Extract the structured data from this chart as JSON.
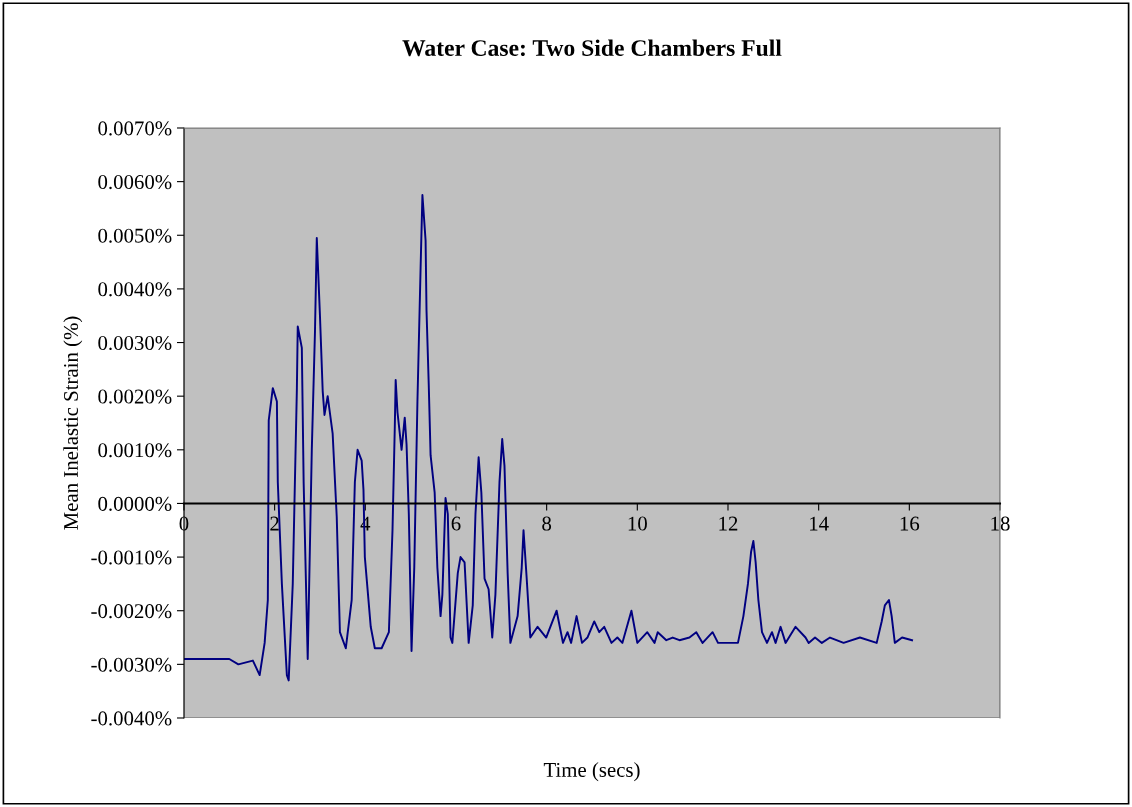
{
  "chart_data": {
    "type": "line",
    "title": "Water Case: Two Side Chambers Full",
    "xlabel": "Time (secs)",
    "ylabel": "Mean Inelastic Strain (%)",
    "x": [
      0,
      1.0,
      1.2,
      1.52,
      1.67,
      1.78,
      1.85,
      1.87,
      1.96,
      2.05,
      2.07,
      2.16,
      2.27,
      2.31,
      2.4,
      2.49,
      2.51,
      2.6,
      2.64,
      2.73,
      2.82,
      2.89,
      2.93,
      3.0,
      3.06,
      3.1,
      3.17,
      3.28,
      3.37,
      3.44,
      3.57,
      3.7,
      3.77,
      3.83,
      3.92,
      3.96,
      3.99,
      4.12,
      4.21,
      4.36,
      4.52,
      4.6,
      4.65,
      4.67,
      4.71,
      4.8,
      4.87,
      4.91,
      4.96,
      5.02,
      5.08,
      5.15,
      5.22,
      5.26,
      5.33,
      5.35,
      5.4,
      5.44,
      5.53,
      5.59,
      5.66,
      5.7,
      5.77,
      5.82,
      5.88,
      5.92,
      6.04,
      6.1,
      6.19,
      6.28,
      6.37,
      6.43,
      6.5,
      6.56,
      6.63,
      6.72,
      6.8,
      6.87,
      6.96,
      7.02,
      7.07,
      7.14,
      7.2,
      7.36,
      7.45,
      7.49,
      7.56,
      7.64,
      7.8,
      7.99,
      8.22,
      8.36,
      8.46,
      8.54,
      8.66,
      8.78,
      8.9,
      9.05,
      9.16,
      9.27,
      9.43,
      9.56,
      9.67,
      9.87,
      10.0,
      10.22,
      10.38,
      10.45,
      10.64,
      10.78,
      10.93,
      11.15,
      11.3,
      11.44,
      11.66,
      11.78,
      12.22,
      12.34,
      12.44,
      12.51,
      12.56,
      12.61,
      12.67,
      12.75,
      12.86,
      12.97,
      13.05,
      13.16,
      13.27,
      13.49,
      13.71,
      13.78,
      13.92,
      14.07,
      14.25,
      14.55,
      14.91,
      15.28,
      15.39,
      15.46,
      15.55,
      15.61,
      15.68,
      15.84,
      16.06
    ],
    "series": [
      {
        "color": "#000080",
        "values": [
          -0.0029,
          -0.0029,
          -0.003,
          -0.00293,
          -0.0032,
          -0.0026,
          -0.0018,
          0.00155,
          0.00215,
          0.0019,
          0.0004,
          -0.0015,
          -0.0032,
          -0.0033,
          -0.0015,
          0.0021,
          0.0033,
          0.0029,
          0.0004,
          -0.0029,
          0.001,
          0.0032,
          0.00495,
          0.0035,
          0.0021,
          0.00165,
          0.002,
          0.0013,
          -0.00025,
          -0.0024,
          -0.0027,
          -0.0018,
          0.0004,
          0.001,
          0.0008,
          0.00025,
          -0.001,
          -0.0023,
          -0.0027,
          -0.0027,
          -0.0024,
          -0.0005,
          0.0014,
          0.0023,
          0.0017,
          0.001,
          0.0016,
          0.0011,
          -0.0002,
          -0.00275,
          -0.0012,
          0.0019,
          0.0044,
          0.00575,
          0.0049,
          0.0036,
          0.0022,
          0.0009,
          0.0002,
          -0.0012,
          -0.0021,
          -0.0017,
          0.0001,
          -0.0002,
          -0.0025,
          -0.0026,
          -0.0013,
          -0.001,
          -0.0011,
          -0.0026,
          -0.0019,
          -0.0002,
          0.00086,
          0.0002,
          -0.0014,
          -0.0016,
          -0.0025,
          -0.0017,
          0.0004,
          0.0012,
          0.0007,
          -0.0013,
          -0.0026,
          -0.0021,
          -0.0012,
          -0.0005,
          -0.0014,
          -0.0025,
          -0.0023,
          -0.0025,
          -0.002,
          -0.0026,
          -0.0024,
          -0.0026,
          -0.0021,
          -0.0026,
          -0.0025,
          -0.0022,
          -0.0024,
          -0.0023,
          -0.0026,
          -0.0025,
          -0.0026,
          -0.002,
          -0.0026,
          -0.0024,
          -0.0026,
          -0.0024,
          -0.00255,
          -0.0025,
          -0.00255,
          -0.0025,
          -0.0024,
          -0.0026,
          -0.0024,
          -0.0026,
          -0.0026,
          -0.0021,
          -0.0015,
          -0.0009,
          -0.0007,
          -0.0011,
          -0.0018,
          -0.0024,
          -0.0026,
          -0.0024,
          -0.0026,
          -0.0023,
          -0.0026,
          -0.0023,
          -0.0025,
          -0.0026,
          -0.0025,
          -0.0026,
          -0.0025,
          -0.0026,
          -0.0025,
          -0.0026,
          -0.0022,
          -0.0019,
          -0.0018,
          -0.0021,
          -0.0026,
          -0.0025,
          -0.00255
        ]
      }
    ],
    "xlim": [
      0,
      18
    ],
    "xticks": [
      0,
      2,
      4,
      6,
      8,
      10,
      12,
      14,
      16,
      18
    ],
    "ylim": [
      -0.004,
      0.007
    ],
    "yticks": [
      {
        "value": -0.004,
        "label": "-0.0040%"
      },
      {
        "value": -0.003,
        "label": "-0.0030%"
      },
      {
        "value": -0.002,
        "label": "-0.0020%"
      },
      {
        "value": -0.001,
        "label": "-0.0010%"
      },
      {
        "value": 0,
        "label": "0.0000%"
      },
      {
        "value": 0.001,
        "label": "0.0010%"
      },
      {
        "value": 0.002,
        "label": "0.0020%"
      },
      {
        "value": 0.003,
        "label": "0.0030%"
      },
      {
        "value": 0.004,
        "label": "0.0040%"
      },
      {
        "value": 0.005,
        "label": "0.0050%"
      },
      {
        "value": 0.006,
        "label": "0.0060%"
      },
      {
        "value": 0.007,
        "label": "0.0070%"
      }
    ],
    "grid": false
  }
}
